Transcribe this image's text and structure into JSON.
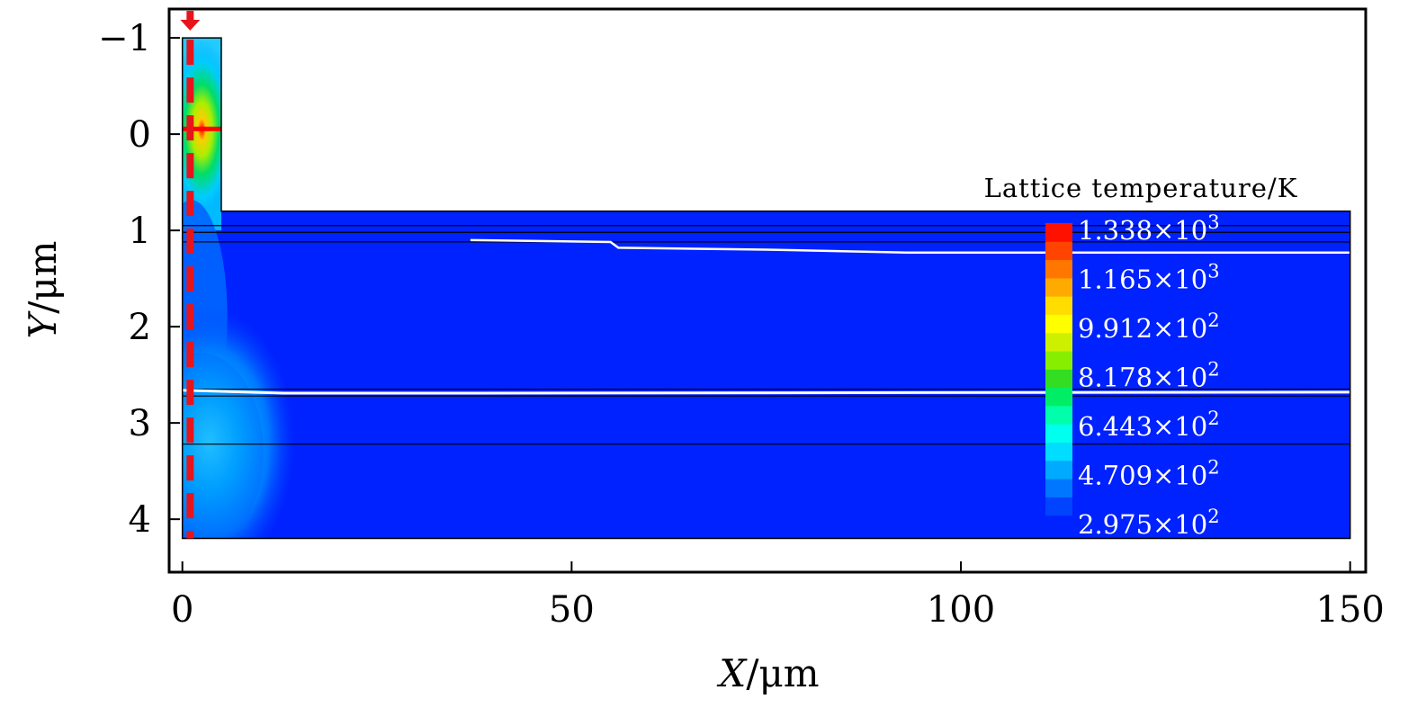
{
  "chart_data": {
    "type": "heatmap",
    "title": "",
    "xlabel": {
      "var": "X",
      "unit": "/μm"
    },
    "ylabel": {
      "var": "Y",
      "unit": "/μm"
    },
    "xlim": [
      -1.7,
      152
    ],
    "ylim": [
      -1.3,
      4.55
    ],
    "x_ticks": [
      {
        "value": 0,
        "label": "0"
      },
      {
        "value": 50,
        "label": "50"
      },
      {
        "value": 100,
        "label": "100"
      },
      {
        "value": 150,
        "label": "150"
      }
    ],
    "y_ticks": [
      {
        "value": -1,
        "label": "−1"
      },
      {
        "value": 0,
        "label": "0"
      },
      {
        "value": 1,
        "label": "1"
      },
      {
        "value": 2,
        "label": "2"
      },
      {
        "value": 3,
        "label": "3"
      },
      {
        "value": 4,
        "label": "4"
      }
    ],
    "colorbar": {
      "title": "Lattice temperature/K",
      "unit": "K",
      "min": 297.5,
      "max": 1338,
      "position": "right",
      "labels": [
        {
          "value": 1338,
          "mantissa": "1.338",
          "exponent": "3"
        },
        {
          "value": 1165,
          "mantissa": "1.165",
          "exponent": "3"
        },
        {
          "value": 991.2,
          "mantissa": "9.912",
          "exponent": "2"
        },
        {
          "value": 817.8,
          "mantissa": "8.178",
          "exponent": "2"
        },
        {
          "value": 644.3,
          "mantissa": "6.443",
          "exponent": "2"
        },
        {
          "value": 470.9,
          "mantissa": "4.709",
          "exponent": "2"
        },
        {
          "value": 297.5,
          "mantissa": "2.975",
          "exponent": "2"
        }
      ],
      "colors": [
        "#0022ff",
        "#0044ff",
        "#0077ff",
        "#00aaff",
        "#00ddff",
        "#00ffee",
        "#00ffaa",
        "#00ee66",
        "#33dd22",
        "#88ee00",
        "#ccf000",
        "#ffff00",
        "#ffdd00",
        "#ffaa00",
        "#ff7700",
        "#ff4400",
        "#ff1100"
      ]
    },
    "structure": {
      "mesa": {
        "x": [
          0,
          5
        ],
        "y": [
          -1,
          1.0
        ]
      },
      "substrate": {
        "x": [
          0,
          150
        ],
        "y": [
          0.8,
          4.2
        ]
      },
      "layer_boundaries_y": [
        0.95,
        1.02,
        1.12,
        2.65,
        2.72,
        3.22
      ]
    },
    "hot_spot": {
      "x": 2.5,
      "y": -0.05,
      "temperature": 1338
    },
    "marker": {
      "type": "dashed-line",
      "x": 1,
      "color": "#e8141c"
    }
  }
}
